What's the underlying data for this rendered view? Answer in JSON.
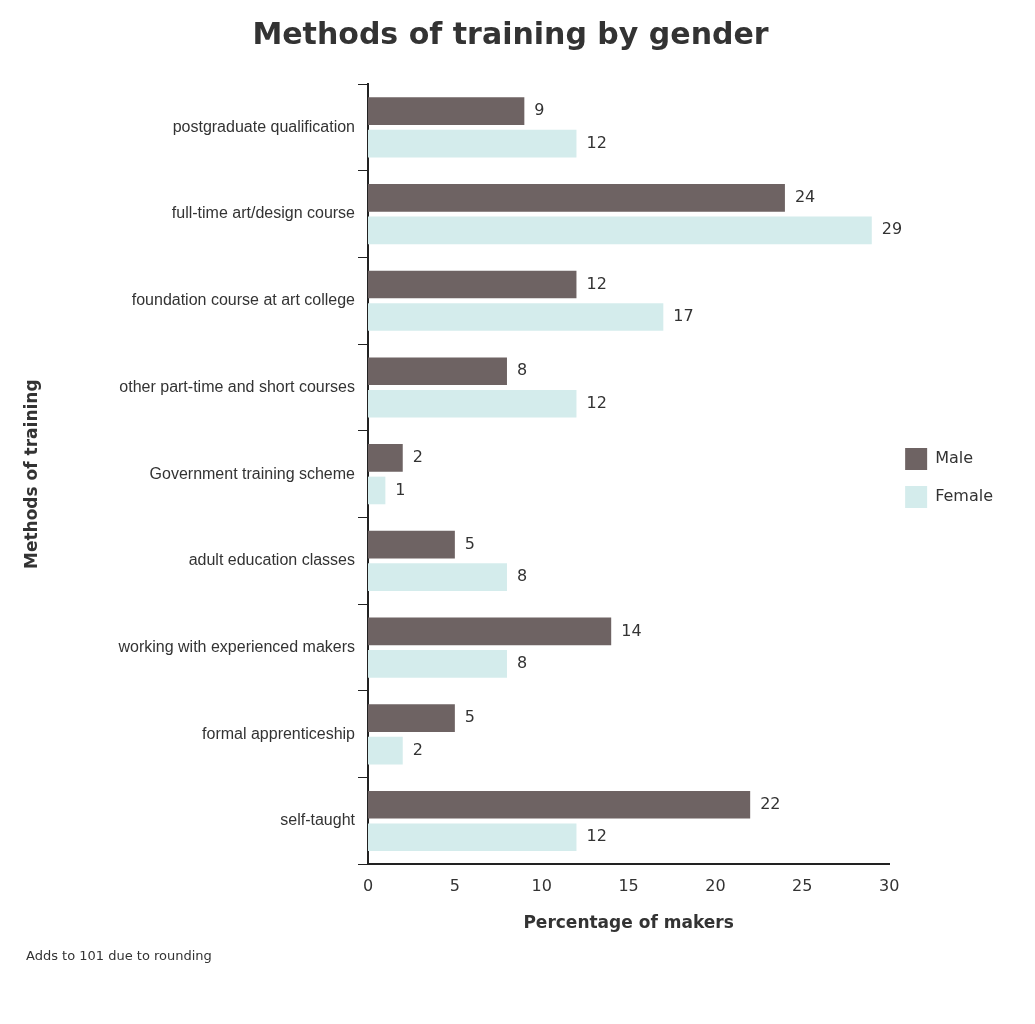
{
  "chart_data": {
    "type": "bar",
    "orientation": "horizontal",
    "title": "Methods of training by gender",
    "xlabel": "Percentage of makers",
    "ylabel": "Methods of training",
    "categories": [
      "postgraduate qualification",
      "full-time art/design course",
      "foundation course at art college",
      "other part-time and short courses",
      "Government training scheme",
      "adult education classes",
      "working with experienced makers",
      "formal apprenticeship",
      "self-taught"
    ],
    "series": [
      {
        "name": "Male",
        "color": "#6e6363",
        "values": [
          9,
          24,
          12,
          8,
          2,
          5,
          14,
          5,
          22
        ]
      },
      {
        "name": "Female",
        "color": "#d4ecec",
        "values": [
          12,
          29,
          17,
          12,
          1,
          8,
          8,
          2,
          12
        ]
      }
    ],
    "xlim": [
      0,
      30
    ],
    "xticks": [
      0,
      5,
      10,
      15,
      20,
      25,
      30
    ],
    "data_labels": true,
    "legend": "right",
    "grid": false,
    "annotations": [
      "Adds to 101 due to rounding"
    ]
  }
}
